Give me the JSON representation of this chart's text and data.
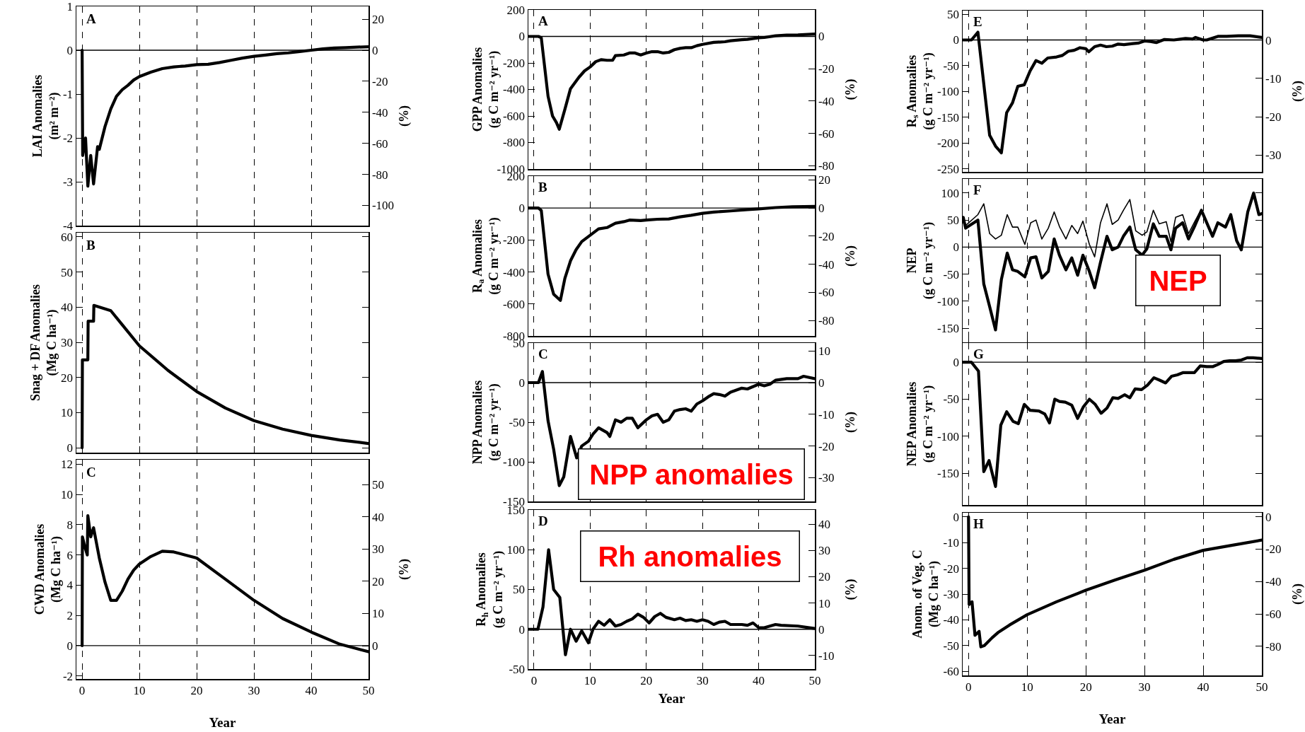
{
  "chart_data": [
    {
      "type": "line",
      "ylabel": "LAI Anomalies\n(m² m⁻²)",
      "y2label": "(%)",
      "annotations": [
        "A"
      ],
      "xlim": [
        -1,
        50
      ],
      "xticks": [
        0,
        10,
        20,
        30,
        40,
        50
      ],
      "ylim": [
        -4,
        1
      ],
      "yticks": [
        -4,
        -3,
        -2,
        -1,
        0,
        1
      ],
      "y2lim": [
        -113,
        28.3
      ],
      "y2ticks": [
        20,
        0,
        -20,
        -40,
        -60,
        -80,
        -100
      ],
      "grid": "x",
      "tick_labels": "y",
      "ref_lines": [
        {
          "axis": "y",
          "value": 0
        }
      ],
      "x": [
        0,
        0.1,
        0.6,
        1.0,
        1.5,
        2.0,
        2.7,
        3,
        4,
        5,
        6,
        7,
        8,
        9,
        10,
        12,
        14,
        16,
        18,
        20,
        22,
        24,
        26,
        28,
        30,
        32,
        34,
        36,
        38,
        40,
        42,
        44,
        46,
        48,
        50
      ],
      "series": [
        {
          "color": "#000000",
          "values": [
            0,
            -2.4,
            -2.0,
            -3.1,
            -2.4,
            -3.05,
            -2.2,
            -2.26,
            -1.74,
            -1.34,
            -1.05,
            -0.9,
            -0.8,
            -0.68,
            -0.6,
            -0.5,
            -0.42,
            -0.38,
            -0.36,
            -0.33,
            -0.32,
            -0.28,
            -0.23,
            -0.18,
            -0.14,
            -0.11,
            -0.08,
            -0.06,
            -0.03,
            0,
            0.03,
            0.05,
            0.06,
            0.07,
            0.08
          ]
        }
      ]
    },
    {
      "type": "line",
      "ylabel": "Snag + DF Anomalies\n(Mg C ha⁻¹)",
      "annotations": [
        "B"
      ],
      "xlim": [
        -1,
        50
      ],
      "xticks": [
        0,
        10,
        20,
        30,
        40,
        50
      ],
      "ylim": [
        -1.4,
        61.2
      ],
      "yticks": [
        0,
        10,
        20,
        30,
        40,
        50,
        60
      ],
      "grid": "x",
      "tick_labels": "y",
      "x": [
        0,
        0.05,
        1,
        1.05,
        2,
        2.05,
        5,
        7,
        10,
        15,
        20,
        25,
        30,
        35,
        40,
        45,
        50
      ],
      "series": [
        {
          "color": "#000000",
          "values": [
            0,
            25,
            25,
            36,
            36,
            40.5,
            39,
            35,
            29,
            22,
            16,
            11.3,
            7.7,
            5.3,
            3.5,
            2.2,
            1.2
          ]
        }
      ]
    },
    {
      "type": "line",
      "ylabel": "CWD Anomalies\n(Mg C ha⁻¹)",
      "y2label": "(%)",
      "xlabel": "Year",
      "annotations": [
        "C"
      ],
      "xlim": [
        -1,
        50
      ],
      "xticks": [
        0,
        10,
        20,
        30,
        40,
        50
      ],
      "ylim": [
        -2.2,
        12.3
      ],
      "yticks": [
        -2,
        0,
        2,
        4,
        6,
        8,
        10,
        12
      ],
      "y2lim": [
        -10.3,
        57.7
      ],
      "y2ticks": [
        0,
        10,
        20,
        30,
        40,
        50
      ],
      "grid": "x",
      "ref_lines": [
        {
          "axis": "y",
          "value": 0
        }
      ],
      "x": [
        0,
        0.05,
        0.5,
        0.9,
        1.0,
        1.5,
        2.0,
        2.5,
        3,
        4,
        5,
        6,
        7,
        8,
        9,
        10,
        12,
        14,
        16,
        18,
        20,
        25,
        30,
        35,
        40,
        45,
        50
      ],
      "series": [
        {
          "color": "#000000",
          "values": [
            0,
            7.2,
            6.5,
            6.0,
            8.6,
            7.2,
            7.8,
            6.8,
            5.8,
            4.2,
            3.0,
            3.0,
            3.6,
            4.4,
            5.0,
            5.4,
            5.9,
            6.25,
            6.2,
            6.0,
            5.8,
            4.4,
            3.0,
            1.8,
            0.9,
            0.1,
            -0.4
          ]
        }
      ]
    },
    {
      "type": "line",
      "ylabel": "GPP Anomalies\n(g C m⁻² yr⁻¹)",
      "y2label": "(%)",
      "annotations": [
        "A"
      ],
      "xlim": [
        -1,
        50
      ],
      "xticks": [
        0,
        10,
        20,
        30,
        40,
        50
      ],
      "ylim": [
        -1000,
        200
      ],
      "yticks": [
        -1000,
        -800,
        -600,
        -400,
        -200,
        0,
        200
      ],
      "y2lim": [
        -82,
        16.4
      ],
      "y2ticks": [
        0,
        -20,
        -40,
        -60,
        -80
      ],
      "grid": "x",
      "tick_labels": "y",
      "ref_lines": [
        {
          "axis": "y",
          "value": 0
        }
      ],
      "x": [
        -1,
        0,
        0.8,
        1.3,
        2.5,
        3.3,
        4,
        4.5,
        5.5,
        6.5,
        8,
        9,
        10,
        11,
        12,
        13,
        14,
        14.5,
        16,
        17,
        18,
        19,
        20,
        21,
        22,
        23,
        24,
        25,
        26,
        27,
        28,
        29,
        30,
        32,
        34,
        35,
        37,
        38,
        40,
        41,
        43,
        45,
        47,
        50
      ],
      "series": [
        {
          "color": "#000000",
          "values": [
            0,
            0,
            0,
            -10,
            -450,
            -600,
            -650,
            -700,
            -550,
            -394,
            -308,
            -260,
            -230,
            -190,
            -175,
            -180,
            -180,
            -145,
            -140,
            -125,
            -125,
            -140,
            -125,
            -115,
            -115,
            -125,
            -120,
            -100,
            -90,
            -85,
            -85,
            -70,
            -60,
            -45,
            -40,
            -33,
            -25,
            -22,
            -10,
            -8,
            5,
            10,
            12,
            18
          ]
        }
      ]
    },
    {
      "type": "line",
      "ylabel": "R$_{a}$ Anomalies\n(g C m⁻² yr⁻¹)",
      "y2label": "(%)",
      "annotations": [
        "B"
      ],
      "xlim": [
        -1,
        50
      ],
      "xticks": [
        0,
        10,
        20,
        30,
        40,
        50
      ],
      "ylim": [
        -800,
        200
      ],
      "yticks": [
        -800,
        -600,
        -400,
        -200,
        0,
        200
      ],
      "y2lim": [
        -90.9,
        22.7
      ],
      "y2ticks": [
        20,
        0,
        -20,
        -40,
        -60,
        -80
      ],
      "grid": "x",
      "tick_labels": "y",
      "ref_lines": [
        {
          "axis": "y",
          "value": 0
        }
      ],
      "x": [
        -1,
        0,
        0.8,
        1.3,
        2.5,
        3.5,
        4.7,
        5.5,
        6.5,
        7.5,
        8.5,
        10,
        11.5,
        13,
        14.5,
        16,
        17,
        19,
        20,
        22,
        24,
        26,
        28,
        30,
        32,
        35,
        38,
        40,
        43,
        46,
        50
      ],
      "series": [
        {
          "color": "#000000",
          "values": [
            0,
            0,
            0,
            -15,
            -413,
            -539,
            -578,
            -440,
            -330,
            -260,
            -210,
            -170,
            -130,
            -122,
            -95,
            -85,
            -75,
            -78,
            -75,
            -70,
            -68,
            -55,
            -45,
            -33,
            -25,
            -18,
            -10,
            -5,
            3,
            8,
            10
          ]
        }
      ]
    },
    {
      "type": "line",
      "ylabel": "NPP Anomalies\n(g C m⁻² yr⁻¹)",
      "y2label": "(%)",
      "annotations": [
        "C",
        "NPP anomalies"
      ],
      "xlim": [
        -1,
        50
      ],
      "xticks": [
        0,
        10,
        20,
        30,
        40,
        50
      ],
      "ylim": [
        -150,
        50
      ],
      "yticks": [
        -150,
        -100,
        -50,
        0,
        50
      ],
      "y2lim": [
        -37.5,
        12.5
      ],
      "y2ticks": [
        10,
        0,
        -10,
        -20,
        -30
      ],
      "grid": "x",
      "tick_labels": "y",
      "ref_lines": [
        {
          "axis": "y",
          "value": 0
        }
      ],
      "x": [
        -1,
        0,
        0.8,
        1.5,
        2.5,
        3.5,
        4.5,
        5.3,
        6.5,
        7.6,
        8.5,
        9.7,
        10.5,
        11.5,
        13,
        13.5,
        14.5,
        15.5,
        16.5,
        17.5,
        18.5,
        20,
        21,
        22,
        23,
        24,
        25,
        26,
        27,
        28,
        29,
        30,
        31,
        32,
        33,
        34,
        35,
        37,
        38,
        40,
        41,
        42,
        43,
        45,
        47,
        48,
        50
      ],
      "series": [
        {
          "color": "#000000",
          "values": [
            0,
            0,
            0,
            14,
            -48,
            -84,
            -130,
            -119,
            -68,
            -95,
            -80,
            -74,
            -65,
            -57,
            -63,
            -68,
            -47,
            -50,
            -45,
            -45,
            -57,
            -47,
            -42,
            -40,
            -50,
            -47,
            -36,
            -34,
            -33,
            -36,
            -27,
            -23,
            -18,
            -14,
            -15,
            -17,
            -12,
            -7,
            -8,
            -2,
            -4,
            -2,
            3,
            5,
            5,
            8,
            5
          ]
        }
      ]
    },
    {
      "type": "line",
      "ylabel": "R$_{h}$ Anomalies\n(g C m⁻² yr⁻¹)",
      "y2label": "(%)",
      "xlabel": "Year",
      "annotations": [
        "D",
        "Rh anomalies"
      ],
      "xlim": [
        -1,
        50
      ],
      "xticks": [
        0,
        10,
        20,
        30,
        40,
        50
      ],
      "ylim": [
        -50,
        150
      ],
      "yticks": [
        -50,
        0,
        50,
        100,
        150
      ],
      "y2lim": [
        -15.2,
        45.5
      ],
      "y2ticks": [
        40,
        30,
        20,
        10,
        0,
        -10
      ],
      "grid": "x",
      "ref_lines": [
        {
          "axis": "y",
          "value": 0
        }
      ],
      "x": [
        -1,
        0,
        0.7,
        1.6,
        2.6,
        3.5,
        4.6,
        5.6,
        6.5,
        7.5,
        8.5,
        9.7,
        10.5,
        11.5,
        12.5,
        13.5,
        14.5,
        15.5,
        16.5,
        17.5,
        18.5,
        19.5,
        20.5,
        21.5,
        22.5,
        23.5,
        25,
        26,
        27,
        28,
        29,
        30,
        31,
        32,
        33,
        34,
        35,
        37,
        38,
        39,
        40,
        41,
        43,
        44,
        47,
        50
      ],
      "series": [
        {
          "color": "#000000",
          "values": [
            0,
            0,
            0,
            28,
            100,
            50,
            40,
            -32,
            0,
            -15,
            -2,
            -17,
            0,
            10,
            5,
            12,
            4,
            6,
            10,
            13,
            19,
            15,
            8,
            16,
            20,
            15,
            12,
            14,
            11,
            12,
            10,
            12,
            10,
            6,
            9,
            10,
            6,
            6,
            5,
            8,
            2,
            2,
            6,
            5,
            4,
            1
          ]
        }
      ]
    },
    {
      "type": "line",
      "ylabel": "R$_{s}$ Anomalies\n(g C m⁻² yr⁻¹)",
      "y2label": "(%)",
      "annotations": [
        "E"
      ],
      "xlim": [
        -1,
        50
      ],
      "xticks": [
        0,
        10,
        20,
        30,
        40,
        50
      ],
      "ylim": [
        -256,
        57
      ],
      "yticks": [
        -250,
        -200,
        -150,
        -100,
        -50,
        0,
        50
      ],
      "y2lim": [
        -34.4,
        7.7
      ],
      "y2ticks": [
        0,
        -10,
        -20,
        -30
      ],
      "grid": "x",
      "tick_labels": "y",
      "ref_lines": [
        {
          "axis": "y",
          "value": 0
        }
      ],
      "x": [
        -1,
        0.5,
        1.6,
        3.6,
        4.6,
        5.6,
        6.5,
        7.5,
        8.4,
        9.5,
        10.5,
        11.5,
        12.5,
        13.5,
        15,
        16,
        17,
        18,
        19,
        20,
        20.5,
        21.5,
        22.5,
        23.5,
        24.5,
        25.5,
        26.5,
        28,
        29,
        30,
        31,
        32,
        33.4,
        35,
        36.3,
        37,
        38.2,
        38.7,
        40,
        40.6,
        42.5,
        44,
        46,
        48,
        50
      ],
      "series": [
        {
          "color": "#000000",
          "values": [
            0,
            0,
            15,
            -185,
            -206,
            -219,
            -141,
            -122,
            -90,
            -87,
            -60,
            -40,
            -45,
            -35,
            -33,
            -30,
            -22,
            -20,
            -15,
            -17,
            -23,
            -13,
            -10,
            -13,
            -12,
            -8,
            -9,
            -7,
            -6,
            -2,
            -3,
            -5,
            1,
            0,
            2,
            3,
            2,
            5,
            0,
            0,
            7,
            7,
            8,
            8,
            5
          ]
        }
      ]
    },
    {
      "type": "line",
      "ylabel": "NEP\n(g C m⁻² yr⁻¹)",
      "annotations": [
        "F",
        "NEP"
      ],
      "xlim": [
        -1,
        50
      ],
      "xticks": [
        0,
        10,
        20,
        30,
        40,
        50
      ],
      "ylim": [
        -176,
        126
      ],
      "yticks": [
        -150,
        -100,
        -50,
        0,
        50,
        100
      ],
      "grid": "x",
      "tick_labels": "y",
      "ref_lines": [
        {
          "axis": "y",
          "value": 0
        }
      ],
      "x": [
        -0.9,
        -0.5,
        1.6,
        2.6,
        3.6,
        4.6,
        5.6,
        6.6,
        7.5,
        8.4,
        9.6,
        10.6,
        11.5,
        12.5,
        13.6,
        14.6,
        15.5,
        16.6,
        17.6,
        18.6,
        19.5,
        20.6,
        21.5,
        22.5,
        23.6,
        24.5,
        25.5,
        26.4,
        27.5,
        28.5,
        29.6,
        30.4,
        31.5,
        32.5,
        33.7,
        34.5,
        35.3,
        36.5,
        37.5,
        38.6,
        39.7,
        41.6,
        42.5,
        43.8,
        44.7,
        45.7,
        46.5,
        47.6,
        48.6,
        49.5,
        50
      ],
      "series": [
        {
          "color": "#000000",
          "values": [
            45,
            40,
            60,
            80,
            25,
            15,
            22,
            60,
            37,
            37,
            5,
            45,
            50,
            15,
            35,
            65,
            38,
            15,
            40,
            25,
            48,
            5,
            -18,
            45,
            80,
            42,
            50,
            68,
            88,
            30,
            22,
            28,
            68,
            43,
            47,
            10,
            55,
            60,
            25,
            48,
            70,
            20,
            45,
            37,
            60,
            12,
            -5,
            65,
            100,
            60,
            62
          ]
        },
        {
          "color": "#000000",
          "values": [
            55,
            35,
            50,
            -68,
            -110,
            -153,
            -60,
            -11,
            -42,
            -45,
            -55,
            -20,
            -18,
            -57,
            -45,
            15,
            -15,
            -42,
            -20,
            -52,
            -15,
            -45,
            -75,
            -28,
            20,
            -5,
            0,
            20,
            37,
            -5,
            -15,
            -3,
            43,
            20,
            20,
            -5,
            35,
            45,
            15,
            40,
            68,
            20,
            45,
            37,
            60,
            12,
            -5,
            65,
            100,
            60,
            62
          ]
        }
      ]
    },
    {
      "type": "line",
      "ylabel": "NEP Anomalies\n(g C m⁻² yr⁻¹)",
      "annotations": [
        "G"
      ],
      "xlim": [
        -1,
        50
      ],
      "xticks": [
        0,
        10,
        20,
        30,
        40,
        50
      ],
      "ylim": [
        -193,
        26
      ],
      "yticks": [
        -150,
        -100,
        -50,
        0
      ],
      "grid": "x",
      "tick_labels": "y",
      "ref_lines": [
        {
          "axis": "y",
          "value": 0
        }
      ],
      "x": [
        -0.9,
        0.5,
        1.7,
        2.6,
        3.5,
        4.6,
        5.5,
        6.5,
        7.6,
        8.5,
        9.5,
        10.5,
        12,
        13,
        13.8,
        14.7,
        15.5,
        16.5,
        17.6,
        18.6,
        19.6,
        20.6,
        21.6,
        22.6,
        23.6,
        24.6,
        25.5,
        26.6,
        27.5,
        28.4,
        29.5,
        30.5,
        31.6,
        32.5,
        33.6,
        34.6,
        35.6,
        36.6,
        37.5,
        38.5,
        39.5,
        40.6,
        41.6,
        42.5,
        43.5,
        44.5,
        45.5,
        46.5,
        47.5,
        48.5,
        50
      ],
      "series": [
        {
          "color": "#000000",
          "values": [
            0,
            0,
            -12,
            -148,
            -133,
            -168,
            -85,
            -67,
            -80,
            -83,
            -57,
            -65,
            -66,
            -70,
            -82,
            -50,
            -53,
            -54,
            -58,
            -76,
            -60,
            -50,
            -57,
            -69,
            -62,
            -48,
            -49,
            -44,
            -48,
            -36,
            -37,
            -31,
            -21,
            -24,
            -28,
            -19,
            -17,
            -14,
            -14,
            -14,
            -5,
            -6,
            -6,
            -3,
            1,
            2,
            2,
            3,
            6,
            6,
            5
          ]
        }
      ]
    },
    {
      "type": "line",
      "ylabel": "Anom. of Veg. C\n(Mg C ha⁻¹)",
      "y2label": "(%)",
      "xlabel": "Year",
      "annotations": [
        "H"
      ],
      "xlim": [
        -1,
        50
      ],
      "xticks": [
        0,
        10,
        20,
        30,
        40,
        50
      ],
      "ylim": [
        -61.6,
        1.6
      ],
      "yticks": [
        -60,
        -50,
        -40,
        -30,
        -20,
        -10,
        0
      ],
      "y2lim": [
        -97.9,
        2.5
      ],
      "y2ticks": [
        0,
        -20,
        -40,
        -60,
        -80
      ],
      "grid": "x",
      "x": [
        0,
        0.1,
        0.6,
        1.1,
        1.8,
        2.1,
        2.7,
        4,
        5,
        7,
        10,
        15,
        20,
        25,
        30,
        35,
        40,
        45,
        50
      ],
      "series": [
        {
          "color": "#000000",
          "values": [
            0,
            -34,
            -33,
            -46,
            -44.5,
            -50.5,
            -50,
            -47,
            -45,
            -42,
            -38,
            -33,
            -28.5,
            -24.5,
            -20.7,
            -16.5,
            -13,
            -11,
            -9
          ]
        }
      ]
    }
  ]
}
